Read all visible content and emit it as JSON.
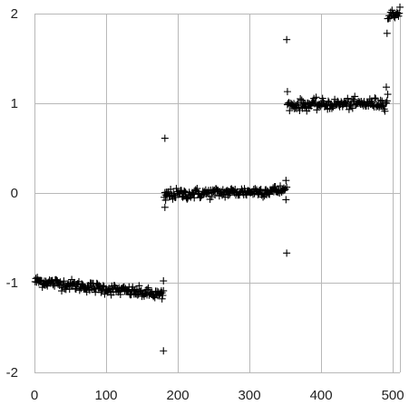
{
  "chart_data": {
    "type": "scatter",
    "marker": "plus",
    "marker_color": "#000000",
    "grid": true,
    "gridline_color": "#b8b8b8",
    "xlim": [
      0,
      510
    ],
    "ylim": [
      -2,
      2
    ],
    "x_ticks": [
      0,
      100,
      200,
      300,
      400,
      500
    ],
    "y_ticks": [
      -2,
      -1,
      0,
      1,
      2
    ],
    "x_tick_labels": [
      "0",
      "100",
      "200",
      "300",
      "400",
      "500"
    ],
    "y_tick_labels": [
      "-2",
      "-1",
      "0",
      "1",
      "2"
    ],
    "segments": [
      {
        "x_start": 1,
        "x_end": 180,
        "y_start": -0.98,
        "y_end": -1.14,
        "noise": 0.03
      },
      {
        "x_start": 181,
        "x_end": 352,
        "y_start": -0.02,
        "y_end": 0.03,
        "noise": 0.03
      },
      {
        "x_start": 353,
        "x_end": 492,
        "y_start": 0.98,
        "y_end": 1.0,
        "noise": 0.03
      },
      {
        "x_start": 493,
        "x_end": 510,
        "y_start": 1.97,
        "y_end": 2.02,
        "noise": 0.03
      }
    ],
    "outliers": [
      {
        "x": 180,
        "y": -1.76
      },
      {
        "x": 180,
        "y": -0.98
      },
      {
        "x": 178,
        "y": -1.18
      },
      {
        "x": 182,
        "y": 0.61
      },
      {
        "x": 182,
        "y": -0.16
      },
      {
        "x": 183,
        "y": -0.08
      },
      {
        "x": 351,
        "y": 0.14
      },
      {
        "x": 352,
        "y": -0.67
      },
      {
        "x": 352,
        "y": 1.71
      },
      {
        "x": 353,
        "y": 1.13
      },
      {
        "x": 491,
        "y": 1.18
      },
      {
        "x": 492,
        "y": 1.78
      },
      {
        "x": 493,
        "y": 1.1
      }
    ]
  }
}
